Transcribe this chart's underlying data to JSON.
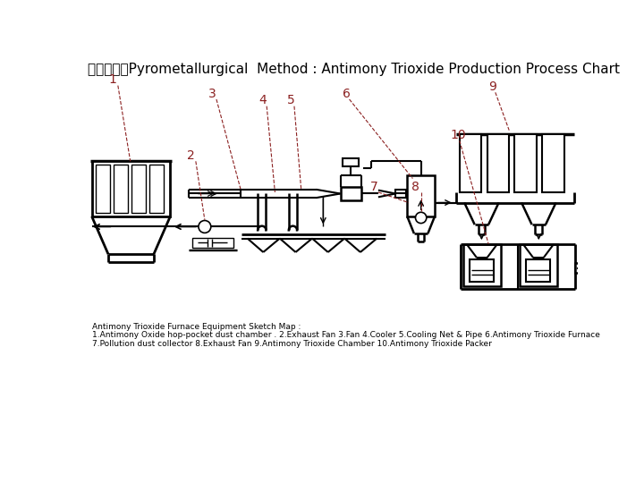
{
  "title": "工艺流程图Pyrometallurgical  Method : Antimony Trioxide Production Process Chart",
  "title_fontsize": 11,
  "bg_color": "#ffffff",
  "line_color": "#000000",
  "label_color": "#8B2020",
  "label_fontsize": 10,
  "caption_line1": "Antimony Trioxide Furnace Equipment Sketch Map :",
  "caption_line2": "1.Antimony Oxide hop-pocket dust chamber . 2.Exhaust Fan 3.Fan 4.Cooler 5.Cooling Net & Pipe 6.Antimony Trioxide Furnace",
  "caption_line3": "7.Pollution dust collector 8.Exhaust Fan 9.Antimony Trioxide Chamber 10.Antimony Trioxide Packer",
  "caption_fontsize": 6.5
}
